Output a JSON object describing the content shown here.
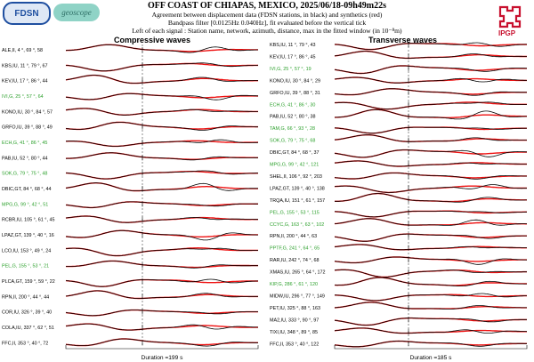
{
  "header": {
    "title": "OFF COAST OF CHIAPAS, MEXICO, 2025/06/18-09h49m22s",
    "line1": "Agreement between displacement data (FDSN stations, in black) and synthetics (red)",
    "line2": "Bandpass filter [0.0125Hz 0.040Hz], fit evaluated before the vertical tick",
    "line3": "Left of each signal : Station name, network, azimuth, distance, max in the fitted window (in 10⁻⁸m)"
  },
  "logos": {
    "fdsn": "FDSN",
    "geoscope": "geoscope",
    "ipgp": "IPGP"
  },
  "colors": {
    "data": "#000000",
    "synthetic": "#ee1111",
    "good_station": "#2ca02c",
    "normal_station": "#000000"
  },
  "chart_data": [
    {
      "type": "line",
      "title": "Compressive waves",
      "duration_label": "Duration =199 s",
      "series": [
        {
          "name": "data",
          "color": "#000000"
        },
        {
          "name": "synthetics",
          "color": "#ee1111"
        }
      ],
      "stations": [
        {
          "label": "ALE,II, 4 °, 69 °, 58",
          "green": false
        },
        {
          "label": "KBS,IU, 11 °, 79 °, 67",
          "green": false
        },
        {
          "label": "KEV,IU, 17 °, 86 °, 44",
          "green": false
        },
        {
          "label": "IVI,G, 25 °, 57 °, 64",
          "green": true
        },
        {
          "label": "KONO,IU, 30 °, 84 °, 57",
          "green": false
        },
        {
          "label": "GRFO,IU, 39 °, 88 °, 49",
          "green": false
        },
        {
          "label": "ECH,G, 41 °, 86 °, 45",
          "green": true
        },
        {
          "label": "PAB,IU, 52 °, 80 °, 44",
          "green": false
        },
        {
          "label": "SOK,G, 79 °, 75 °, 48",
          "green": true
        },
        {
          "label": "DBIC,GT, 84 °, 68 °, 44",
          "green": false
        },
        {
          "label": "MPG,G, 99 °, 42 °, 51",
          "green": true
        },
        {
          "label": "RCBR,IU, 105 °, 61 °, 45",
          "green": false
        },
        {
          "label": "LPAZ,GT, 139 °, 40 °, 16",
          "green": false
        },
        {
          "label": "LCO,IU, 153 °, 49 °, 24",
          "green": false
        },
        {
          "label": "PEL,G, 155 °, 53 °, 21",
          "green": true
        },
        {
          "label": "PLCA,GT, 159 °, 59 °, 22",
          "green": false
        },
        {
          "label": "RPN,II, 200 °, 44 °, 44",
          "green": false
        },
        {
          "label": "COR,IU, 326 °, 39 °, 40",
          "green": false
        },
        {
          "label": "COLA,IU, 337 °, 62 °, 51",
          "green": false
        },
        {
          "label": "FFC,II, 353 °, 40 °, 72",
          "green": false
        }
      ]
    },
    {
      "type": "line",
      "title": "Transverse waves",
      "duration_label": "Duration =185 s",
      "series": [
        {
          "name": "data",
          "color": "#000000"
        },
        {
          "name": "synthetics",
          "color": "#ee1111"
        }
      ],
      "stations": [
        {
          "label": "KBS,IU, 11 °, 79 °, 43",
          "green": false
        },
        {
          "label": "KEV,IU, 17 °, 86 °, 45",
          "green": false
        },
        {
          "label": "IVI,G, 25 °, 57 °, 19",
          "green": true
        },
        {
          "label": "KONO,IU, 30 °, 84 °, 29",
          "green": false
        },
        {
          "label": "GRFO,IU, 39 °, 88 °, 31",
          "green": false
        },
        {
          "label": "ECH,G, 41 °, 86 °, 30",
          "green": true
        },
        {
          "label": "PAB,IU, 52 °, 80 °, 38",
          "green": false
        },
        {
          "label": "TAM,G, 66 °, 93 °, 28",
          "green": true
        },
        {
          "label": "SOK,G, 79 °, 75 °, 68",
          "green": true
        },
        {
          "label": "DBIC,GT, 84 °, 68 °, 37",
          "green": false
        },
        {
          "label": "MPG,G, 99 °, 42 °, 121",
          "green": true
        },
        {
          "label": "SHEL,II, 106 °, 92 °, 203",
          "green": false
        },
        {
          "label": "LPAZ,GT, 139 °, 40 °, 138",
          "green": false
        },
        {
          "label": "TRQA,IU, 151 °, 61 °, 157",
          "green": false
        },
        {
          "label": "PEL,G, 155 °, 53 °, 115",
          "green": true
        },
        {
          "label": "CCYC,G, 163 °, 63 °, 102",
          "green": true
        },
        {
          "label": "RPN,II, 200 °, 44 °, 63",
          "green": false
        },
        {
          "label": "PPTF,G, 241 °, 64 °, 65",
          "green": true
        },
        {
          "label": "RAR,IU, 242 °, 74 °, 68",
          "green": false
        },
        {
          "label": "XMAS,IU, 265 °, 64 °, 172",
          "green": false
        },
        {
          "label": "KIP,G, 286 °, 61 °, 120",
          "green": true
        },
        {
          "label": "MIDW,IU, 296 °, 77 °, 149",
          "green": false
        },
        {
          "label": "PET,IU, 325 °, 88 °, 163",
          "green": false
        },
        {
          "label": "MA2,IU, 333 °, 90 °, 97",
          "green": false
        },
        {
          "label": "TIXI,IU, 348 °, 89 °, 85",
          "green": false
        },
        {
          "label": "FFC,II, 353 °, 40 °, 122",
          "green": false
        }
      ]
    }
  ]
}
